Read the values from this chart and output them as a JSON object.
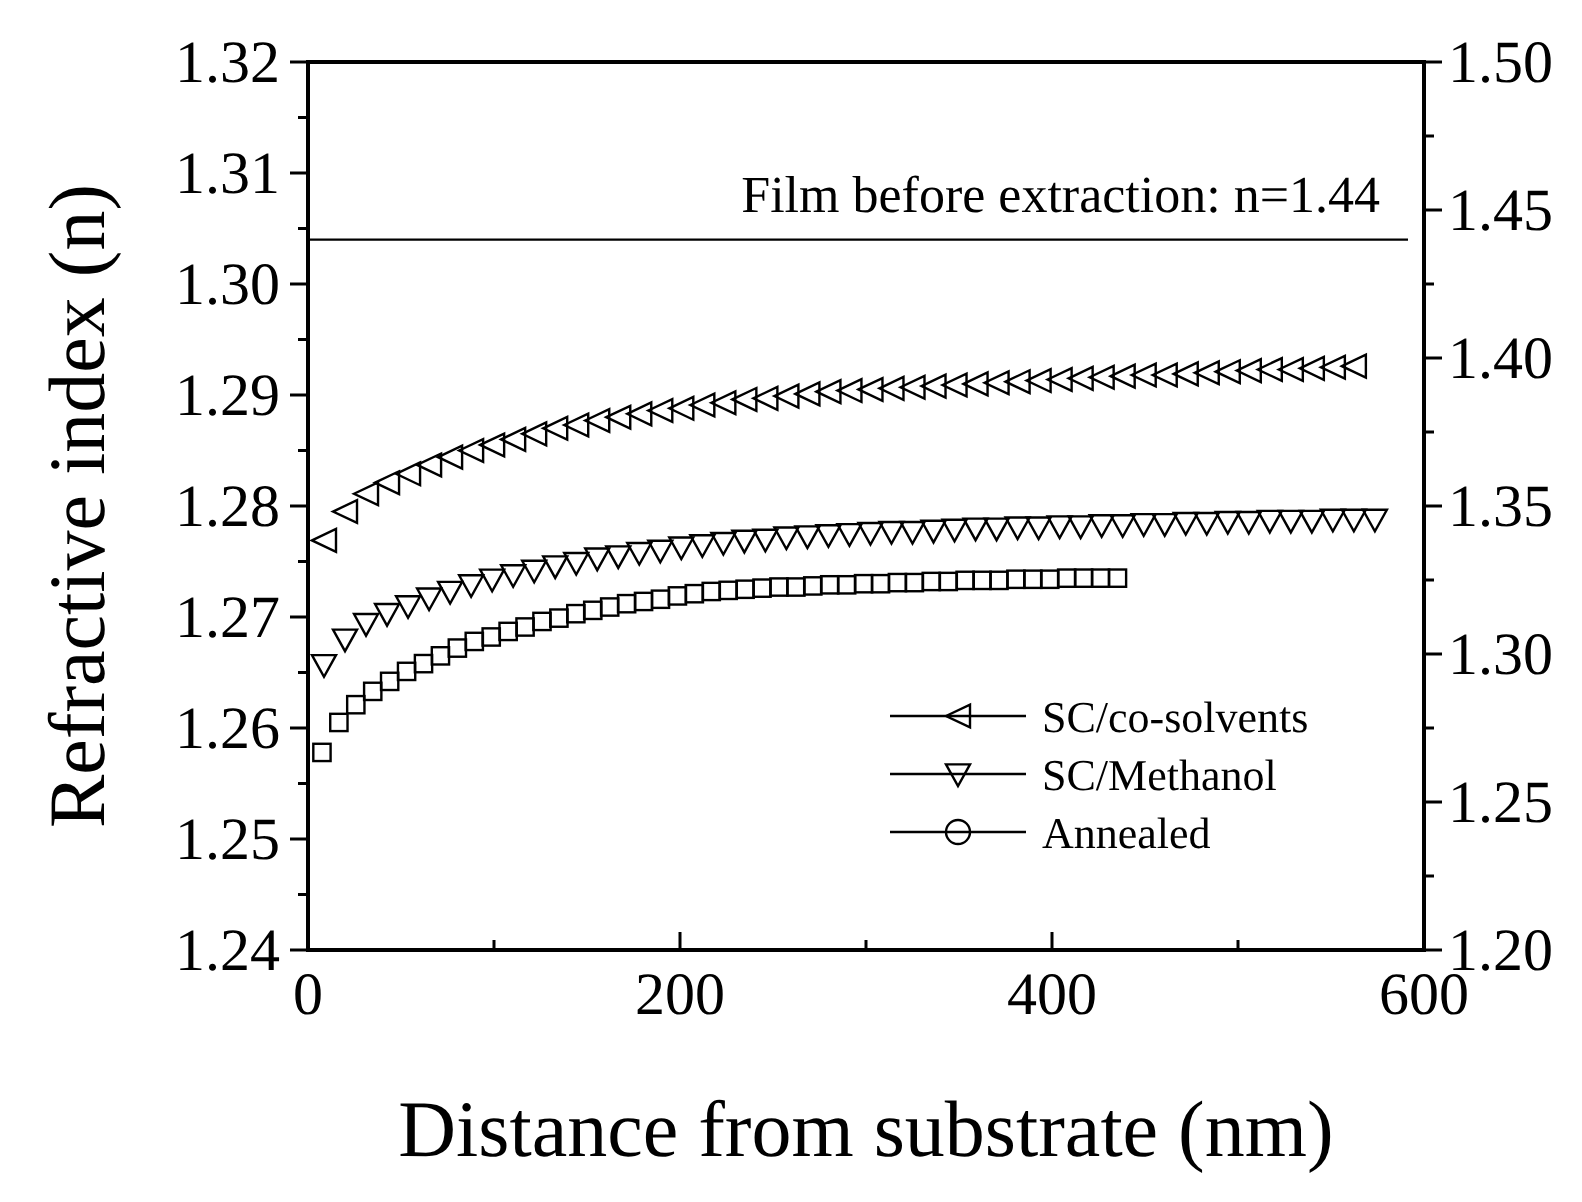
{
  "chart_data": {
    "type": "scatter",
    "xlabel": "Distance from substrate (nm)",
    "ylabel": "Refractive index (n)",
    "xlim": [
      0,
      600
    ],
    "xticks": [
      0,
      {
        "value": 100,
        "label": null
      },
      200,
      {
        "value": 300,
        "label": null
      },
      400,
      {
        "value": 500,
        "label": null
      },
      600
    ],
    "ylim": [
      1.24,
      1.32
    ],
    "yticks": [
      1.24,
      {
        "value": 1.245,
        "label": null
      },
      1.25,
      {
        "value": 1.255,
        "label": null
      },
      1.26,
      {
        "value": 1.265,
        "label": null
      },
      1.27,
      {
        "value": 1.275,
        "label": null
      },
      1.28,
      {
        "value": 1.285,
        "label": null
      },
      1.29,
      {
        "value": 1.295,
        "label": null
      },
      {
        "value": 1.3,
        "label": "1.30"
      },
      {
        "value": 1.305,
        "label": null
      },
      1.31,
      {
        "value": 1.315,
        "label": null
      },
      1.32
    ],
    "y2lim": [
      1.2,
      1.5
    ],
    "y2ticks": [
      {
        "value": 1.2,
        "label": "1.20"
      },
      {
        "value": 1.225,
        "label": null
      },
      1.25,
      {
        "value": 1.275,
        "label": null
      },
      {
        "value": 1.3,
        "label": "1.30"
      },
      {
        "value": 1.325,
        "label": null
      },
      1.35,
      {
        "value": 1.375,
        "label": null
      },
      {
        "value": 1.4,
        "label": "1.40"
      },
      {
        "value": 1.425,
        "label": null
      },
      1.45,
      {
        "value": 1.475,
        "label": null
      },
      {
        "value": 1.5,
        "label": "1.50"
      }
    ],
    "ref_lines": [
      {
        "axis": "y2",
        "value": 1.44,
        "label": "Film before extraction: n=1.44",
        "color": "#000000"
      }
    ],
    "legend": "bottom right",
    "grid": false,
    "series": [
      {
        "name": "SC/co-solvents",
        "color": "#000000",
        "marker": "triangle-left",
        "x": [
          8.6,
          19.9,
          31.2,
          42.5,
          53.8,
          65.1,
          76.4,
          87.7,
          99,
          110.3,
          121.6,
          132.9,
          144.2,
          155.5,
          166.8,
          178.1,
          189.4,
          200.7,
          212,
          223.3,
          234.6,
          245.9,
          257.2,
          268.5,
          279.8,
          291.1,
          302.4,
          313.7,
          325,
          336.3,
          347.6,
          358.9,
          370.2,
          381.5,
          392.8,
          404.1,
          415.4,
          426.7,
          438,
          449.3,
          460.6,
          471.9,
          483.2,
          494.5,
          505.8,
          517.1,
          528.4,
          539.7,
          551,
          562.3
        ],
        "values": [
          1.2769,
          1.2795,
          1.2811,
          1.2821,
          1.2829,
          1.2837,
          1.2844,
          1.285,
          1.2855,
          1.286,
          1.2865,
          1.287,
          1.2873,
          1.2877,
          1.288,
          1.2883,
          1.2886,
          1.2888,
          1.2891,
          1.2893,
          1.2896,
          1.2897,
          1.2899,
          1.2901,
          1.2903,
          1.2904,
          1.2905,
          1.2906,
          1.2907,
          1.2908,
          1.2909,
          1.291,
          1.2911,
          1.2912,
          1.2913,
          1.2914,
          1.2915,
          1.2916,
          1.2917,
          1.2918,
          1.2918,
          1.2919,
          1.292,
          1.2921,
          1.2922,
          1.2923,
          1.2923,
          1.2924,
          1.2925,
          1.2926
        ]
      },
      {
        "name": "SC/Methanol",
        "color": "#000000",
        "marker": "triangle-down",
        "x": [
          8.6,
          19.9,
          31.2,
          42.5,
          53.8,
          65.1,
          76.4,
          87.7,
          99,
          110.3,
          121.6,
          132.9,
          144.2,
          155.5,
          166.8,
          178.1,
          189.4,
          200.7,
          212,
          223.3,
          234.6,
          245.9,
          257.2,
          268.5,
          279.8,
          291.1,
          302.4,
          313.7,
          325,
          336.3,
          347.6,
          358.9,
          370.2,
          381.5,
          392.8,
          404.1,
          415.4,
          426.7,
          438,
          449.3,
          460.6,
          471.9,
          483.2,
          494.5,
          505.8,
          517.1,
          528.4,
          539.7,
          551,
          562.3,
          573.6
        ],
        "values": [
          1.2657,
          1.268,
          1.2694,
          1.2703,
          1.271,
          1.2717,
          1.2723,
          1.2729,
          1.2734,
          1.2738,
          1.2742,
          1.2746,
          1.2749,
          1.2753,
          1.2755,
          1.2758,
          1.276,
          1.2763,
          1.2765,
          1.2767,
          1.2769,
          1.277,
          1.2772,
          1.2773,
          1.2774,
          1.2775,
          1.2776,
          1.2777,
          1.2777,
          1.2778,
          1.2779,
          1.278,
          1.278,
          1.2781,
          1.2781,
          1.2782,
          1.2782,
          1.2783,
          1.2783,
          1.2784,
          1.2784,
          1.2785,
          1.2785,
          1.2786,
          1.2786,
          1.2787,
          1.2787,
          1.2787,
          1.2788,
          1.2788,
          1.2788
        ]
      },
      {
        "name": "Annealed",
        "color": "#000000",
        "marker": "circle"
      },
      {
        "color": "#000000",
        "marker": "square",
        "x": [
          7.5,
          16.6,
          25.7,
          34.8,
          43.9,
          53,
          62.1,
          71.2,
          80.3,
          89.4,
          98.5,
          107.6,
          116.7,
          125.8,
          134.9,
          144,
          153.1,
          162.2,
          171.3,
          180.4,
          189.5,
          198.6,
          207.7,
          216.8,
          225.9,
          235,
          244.1,
          253.2,
          262.3,
          271.4,
          280.5,
          289.6,
          298.7,
          307.8,
          316.9,
          326,
          335.1,
          344.2,
          353.3,
          362.4,
          371.5,
          380.6,
          389.7,
          398.8,
          407.9,
          417,
          426.1,
          435.2
        ],
        "values": [
          1.2578,
          1.2605,
          1.2621,
          1.2633,
          1.2642,
          1.2651,
          1.2658,
          1.2665,
          1.2672,
          1.2678,
          1.2682,
          1.2687,
          1.2691,
          1.2696,
          1.2699,
          1.2703,
          1.2706,
          1.2709,
          1.2712,
          1.2714,
          1.2716,
          1.2719,
          1.2721,
          1.2723,
          1.2724,
          1.2725,
          1.2726,
          1.2727,
          1.2727,
          1.2728,
          1.2729,
          1.2729,
          1.273,
          1.273,
          1.2731,
          1.2731,
          1.2732,
          1.2732,
          1.2733,
          1.2733,
          1.2733,
          1.2734,
          1.2734,
          1.2734,
          1.2735,
          1.2735,
          1.2735,
          1.2735
        ]
      }
    ]
  }
}
